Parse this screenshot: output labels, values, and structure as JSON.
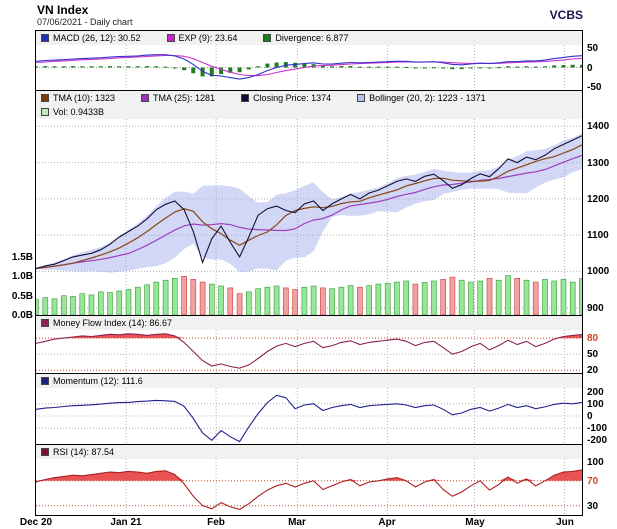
{
  "header": {
    "title": "VN Index",
    "subtitle": "07/06/2021 - Daily chart",
    "brand": "VCBS"
  },
  "colors": {
    "macd": "#3333cc",
    "exp": "#cc33cc",
    "divergence": "#1e7d1e",
    "close": "#10103a",
    "tma10": "#8b4513",
    "tma25": "#a040c0",
    "bollinger_fill": "#9aa6e6",
    "vol_up": "#98e698",
    "vol_down": "#f4a0a0",
    "vol_up_edge": "#3a9a3a",
    "vol_down_edge": "#c04040",
    "mfi": "#8b2252",
    "momentum": "#202090",
    "rsi": "#aa2020",
    "overbought_fill": "#e84040",
    "threshold": "#cc4422",
    "grid": "#b0b0b0",
    "frame": "#000000"
  },
  "thresholds": {
    "mfi": [
      80
    ],
    "rsi": [
      70
    ]
  },
  "legends": {
    "macd": [
      {
        "label": "MACD (26, 12): 30.52",
        "color": "#2233bb"
      },
      {
        "label": "EXP (9): 23.64",
        "color": "#cc22cc"
      },
      {
        "label": "Divergence: 6.877",
        "color": "#1e7d1e"
      }
    ],
    "price_row1": [
      {
        "label": "TMA (10): 1323",
        "color": "#7a3b10"
      },
      {
        "label": "TMA (25): 1281",
        "color": "#9933bb"
      },
      {
        "label": "Closing Price: 1374",
        "color": "#10103a"
      },
      {
        "label": "Bollinger (20, 2): 1223 - 1371",
        "color": "#b8c0ee"
      }
    ],
    "price_row2": [
      {
        "label": "Vol: 0.9433B",
        "color": "#b8f0b8"
      }
    ],
    "mfi": [
      {
        "label": "Money Flow Index (14): 86.67",
        "color": "#8b2252"
      }
    ],
    "momentum": [
      {
        "label": "Momentum (12): 111.6",
        "color": "#1a237e"
      }
    ],
    "rsi": [
      {
        "label": "RSI (14): 87.54",
        "color": "#7a1030"
      }
    ]
  },
  "chart_data": {
    "type": "line",
    "title": "VN Index - Daily chart - 07/06/2021",
    "n_points": 60,
    "x_ticks": [
      {
        "label": "Dec 20",
        "f": 0.0
      },
      {
        "label": "Jan 21",
        "f": 0.1649
      },
      {
        "label": "Feb",
        "f": 0.3298
      },
      {
        "label": "Mar",
        "f": 0.4787
      },
      {
        "label": "Apr",
        "f": 0.6436
      },
      {
        "label": "May",
        "f": 0.8032
      },
      {
        "label": "Jun",
        "f": 0.9681
      }
    ],
    "panels": {
      "macd": {
        "ylim": [
          -58,
          58
        ],
        "yticks": [
          50,
          0,
          -50
        ],
        "series": {
          "macd": [
            16,
            18,
            19,
            20,
            22,
            23,
            24,
            25,
            27,
            28,
            29,
            30,
            32,
            33,
            33,
            30,
            22,
            8,
            -10,
            -20,
            -22,
            -26,
            -30,
            -26,
            -18,
            -8,
            0,
            6,
            8,
            10,
            12,
            9,
            9,
            11,
            13,
            12,
            13,
            14,
            15,
            16,
            16,
            14,
            14,
            15,
            12,
            8,
            7,
            9,
            11,
            10,
            12,
            15,
            15,
            17,
            17,
            19,
            23,
            26,
            29,
            30.52
          ],
          "exp": [
            13,
            14.5,
            16,
            17,
            18.5,
            20,
            21,
            22,
            23.5,
            25,
            26,
            27,
            28.5,
            30,
            31,
            31,
            29,
            23,
            13,
            3,
            -5,
            -12,
            -18,
            -21,
            -21,
            -18,
            -13,
            -8,
            -4,
            0,
            3.5,
            5,
            6,
            7.5,
            9,
            10,
            11,
            12,
            13,
            14,
            14.5,
            14.5,
            14.3,
            14.5,
            14,
            12.5,
            11,
            10.5,
            10.7,
            10.6,
            10.9,
            12,
            12.8,
            13.9,
            14.7,
            15.8,
            17.6,
            19.7,
            22,
            23.64
          ]
        },
        "divergence_rule": "macd - exp",
        "current": {
          "macd": 30.52,
          "exp": 23.64,
          "divergence": 6.877
        }
      },
      "price": {
        "ylim": [
          880,
          1420
        ],
        "yticks": [
          1400,
          1300,
          1200,
          1100,
          1000,
          900
        ],
        "close": [
          1008,
          1015,
          1020,
          1030,
          1040,
          1045,
          1050,
          1060,
          1075,
          1095,
          1110,
          1125,
          1145,
          1170,
          1185,
          1194,
          1170,
          1110,
          1025,
          1090,
          1125,
          1080,
          1040,
          1095,
          1155,
          1173,
          1180,
          1168,
          1162,
          1186,
          1194,
          1168,
          1186,
          1200,
          1212,
          1200,
          1216,
          1224,
          1236,
          1248,
          1255,
          1248,
          1262,
          1268,
          1250,
          1229,
          1239,
          1256,
          1269,
          1261,
          1283,
          1310,
          1300,
          1315,
          1308,
          1320,
          1338,
          1350,
          1362,
          1374
        ],
        "volume_billions": [
          0.4,
          0.45,
          0.42,
          0.5,
          0.48,
          0.55,
          0.52,
          0.6,
          0.58,
          0.62,
          0.66,
          0.72,
          0.78,
          0.85,
          0.9,
          0.95,
          1.0,
          0.92,
          0.85,
          0.8,
          0.75,
          0.7,
          0.55,
          0.6,
          0.68,
          0.72,
          0.75,
          0.7,
          0.66,
          0.72,
          0.75,
          0.7,
          0.68,
          0.72,
          0.76,
          0.72,
          0.76,
          0.8,
          0.82,
          0.85,
          0.88,
          0.8,
          0.84,
          0.88,
          0.92,
          0.98,
          0.9,
          0.85,
          0.88,
          0.95,
          0.9,
          1.02,
          0.95,
          0.9,
          0.85,
          0.92,
          0.88,
          0.92,
          0.85,
          0.9433
        ],
        "vol_ylim": [
          0,
          1.5
        ],
        "vol_ticks": [
          {
            "label": "1.5B",
            "v": 1.5
          },
          {
            "label": "1.0B",
            "v": 1.0
          },
          {
            "label": "0.5B",
            "v": 0.5
          },
          {
            "label": "0.0B",
            "v": 0.0
          }
        ],
        "overlays": "TMA(10), TMA(25), Bollinger(20,2) computed from close",
        "current": {
          "tma10": 1323,
          "tma25": 1281,
          "closing_price": 1374,
          "bollinger_low": 1223,
          "bollinger_high": 1371,
          "volume": "0.9433B"
        }
      },
      "mfi": {
        "ylim": [
          15,
          95
        ],
        "yticks": [
          80,
          50,
          20
        ],
        "values": [
          70,
          74,
          78,
          80,
          82,
          84,
          83,
          85,
          87,
          86,
          88,
          87,
          85,
          87,
          88,
          84,
          72,
          55,
          38,
          28,
          32,
          27,
          24,
          30,
          42,
          55,
          65,
          70,
          64,
          70,
          74,
          62,
          66,
          72,
          75,
          68,
          72,
          74,
          76,
          78,
          74,
          66,
          72,
          74,
          62,
          50,
          55,
          64,
          70,
          58,
          66,
          76,
          68,
          74,
          64,
          70,
          78,
          83,
          85,
          86.67
        ],
        "overbought": 80,
        "current": 86.67
      },
      "momentum": {
        "ylim": [
          -230,
          230
        ],
        "yticks": [
          200,
          100,
          0,
          -100,
          -200
        ],
        "values": [
          55,
          65,
          70,
          78,
          85,
          88,
          92,
          98,
          105,
          110,
          112,
          118,
          122,
          128,
          125,
          120,
          80,
          -20,
          -140,
          -200,
          -120,
          -170,
          -210,
          -90,
          20,
          110,
          170,
          150,
          60,
          90,
          100,
          45,
          70,
          85,
          95,
          70,
          85,
          90,
          95,
          100,
          90,
          70,
          85,
          90,
          55,
          10,
          25,
          55,
          70,
          40,
          65,
          95,
          70,
          85,
          60,
          75,
          95,
          105,
          100,
          111.6
        ],
        "current": 111.6
      },
      "rsi": {
        "ylim": [
          15,
          105
        ],
        "yticks": [
          100,
          70,
          30
        ],
        "values": [
          68,
          72,
          75,
          77,
          79,
          78,
          80,
          82,
          84,
          83,
          85,
          84,
          82,
          85,
          86,
          80,
          65,
          45,
          30,
          25,
          35,
          28,
          24,
          33,
          45,
          55,
          62,
          66,
          60,
          66,
          70,
          56,
          62,
          68,
          72,
          62,
          68,
          70,
          73,
          75,
          70,
          60,
          68,
          72,
          56,
          45,
          52,
          62,
          70,
          55,
          64,
          76,
          66,
          73,
          62,
          70,
          79,
          84,
          85,
          87.54
        ],
        "overbought": 70,
        "current": 87.54
      }
    }
  }
}
